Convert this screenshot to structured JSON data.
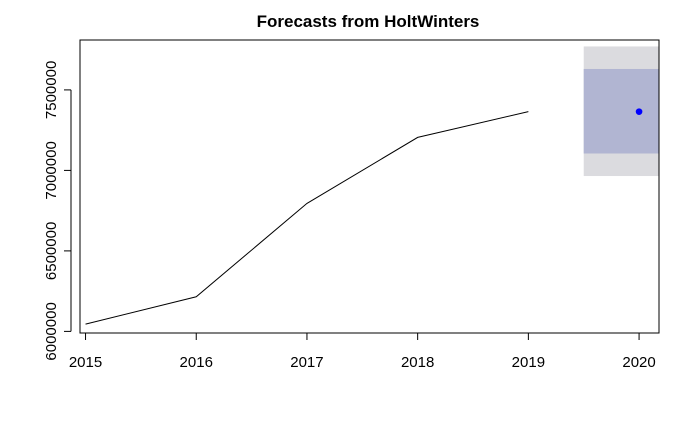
{
  "chart_data": {
    "type": "line",
    "title": "Forecasts from HoltWinters",
    "xlabel": "",
    "ylabel": "",
    "xlim": [
      2014.95,
      2020.18
    ],
    "ylim": [
      5990000,
      7810000
    ],
    "x_ticks": [
      2015,
      2016,
      2017,
      2018,
      2019,
      2020
    ],
    "x_tick_labels": [
      "2015",
      "2016",
      "2017",
      "2018",
      "2019",
      "2020"
    ],
    "y_ticks": [
      6000000,
      6500000,
      7000000,
      7500000
    ],
    "y_tick_labels": [
      "6000000",
      "6500000",
      "7000000",
      "7500000"
    ],
    "grid": false,
    "series": [
      {
        "name": "observed",
        "color": "#000000",
        "x": [
          2015,
          2016,
          2017,
          2018,
          2019
        ],
        "values": [
          6045000,
          6215000,
          6795000,
          7205000,
          7365000
        ]
      }
    ],
    "forecast": {
      "x": 2020,
      "point": 7365000,
      "point_color": "#0000ff",
      "x_range": [
        2019.5,
        2020.2
      ],
      "intervals": [
        {
          "name": "95%",
          "lower": 6965000,
          "upper": 7770000,
          "color": "#dbdbdf"
        },
        {
          "name": "80%",
          "lower": 7105000,
          "upper": 7630000,
          "color": "#b1b5d2"
        }
      ]
    }
  }
}
